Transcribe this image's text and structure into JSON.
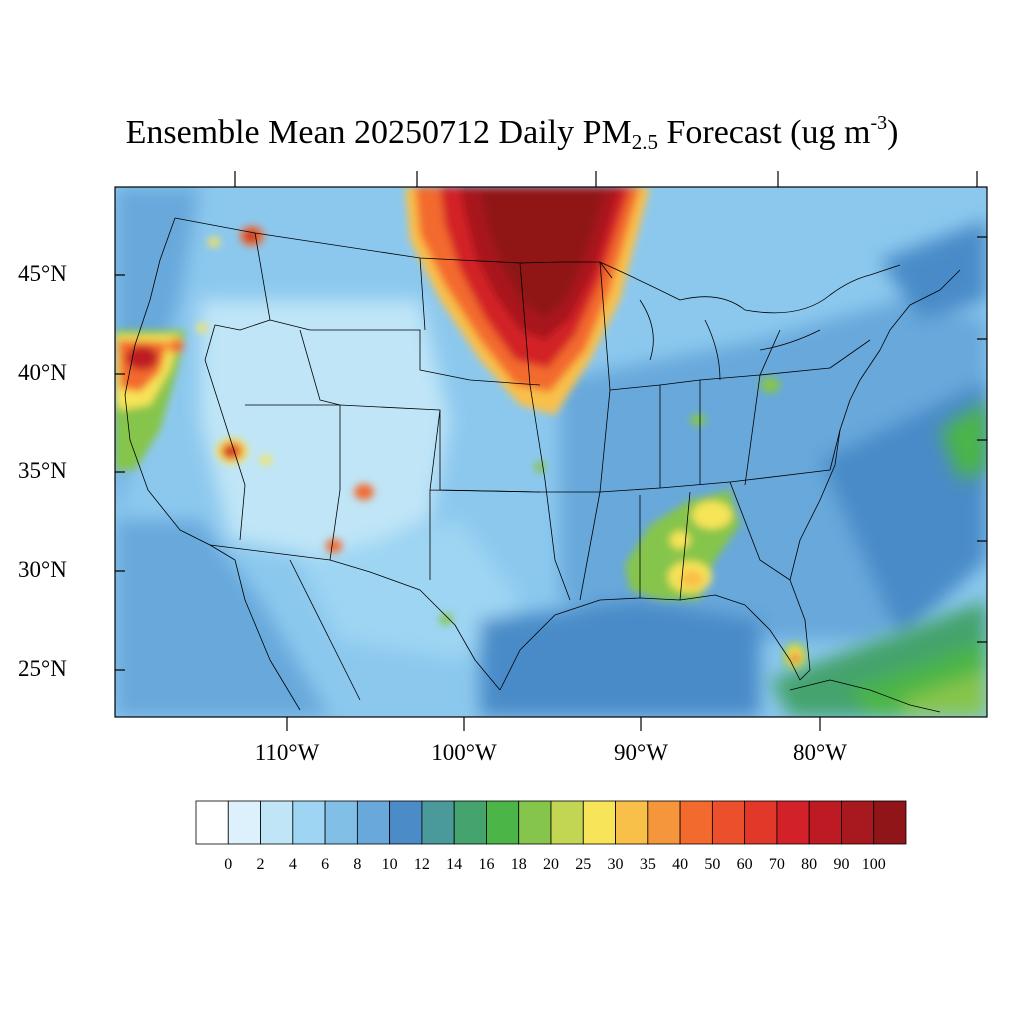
{
  "title": {
    "pre": "Ensemble Mean 20250712 Daily PM",
    "sub": "2.5",
    "mid": " Forecast (ug m",
    "sup": "-3",
    "post": ")"
  },
  "lat_labels": [
    "45°N",
    "40°N",
    "35°N",
    "30°N",
    "25°N"
  ],
  "lon_labels": [
    "110°W",
    "100°W",
    "90°W",
    "80°W"
  ],
  "colorbar": {
    "colors": [
      "#ffffff",
      "#dcf1fb",
      "#bfe5f7",
      "#9dd5f3",
      "#82bfe6",
      "#68a8db",
      "#4a8bc8",
      "#4a9a9c",
      "#45a36d",
      "#4cb547",
      "#86c54b",
      "#c3d654",
      "#f7e458",
      "#f9c049",
      "#f6963c",
      "#f36a2e",
      "#ec4f2b",
      "#e13829",
      "#d22128",
      "#bd1a23",
      "#a8181f",
      "#901518"
    ],
    "labels": [
      "0",
      "2",
      "4",
      "6",
      "8",
      "10",
      "12",
      "14",
      "16",
      "18",
      "20",
      "25",
      "30",
      "35",
      "40",
      "50",
      "60",
      "70",
      "80",
      "90",
      "100"
    ]
  },
  "field": {
    "background_color": "#8cc8ee",
    "features": [
      {
        "name": "canada-smoke-plume",
        "colors": [
          "#f9c049",
          "#f36a2e",
          "#d22128",
          "#a8181f",
          "#901518"
        ]
      },
      {
        "name": "northern-california-fire",
        "colors": [
          "#86c54b",
          "#f7e458",
          "#f36a2e",
          "#bd1a23"
        ]
      },
      {
        "name": "arizona-fire",
        "colors": [
          "#f7e458",
          "#f36a2e",
          "#bd1a23"
        ]
      },
      {
        "name": "southeast-hotspots",
        "colors": [
          "#86c54b",
          "#f7e458",
          "#f9c049"
        ]
      },
      {
        "name": "south-florida-fire",
        "colors": [
          "#86c54b",
          "#f7e458",
          "#ec4f2b"
        ]
      },
      {
        "name": "caribbean-plume",
        "colors": [
          "#45a36d",
          "#4cb547",
          "#86c54b"
        ]
      }
    ]
  }
}
